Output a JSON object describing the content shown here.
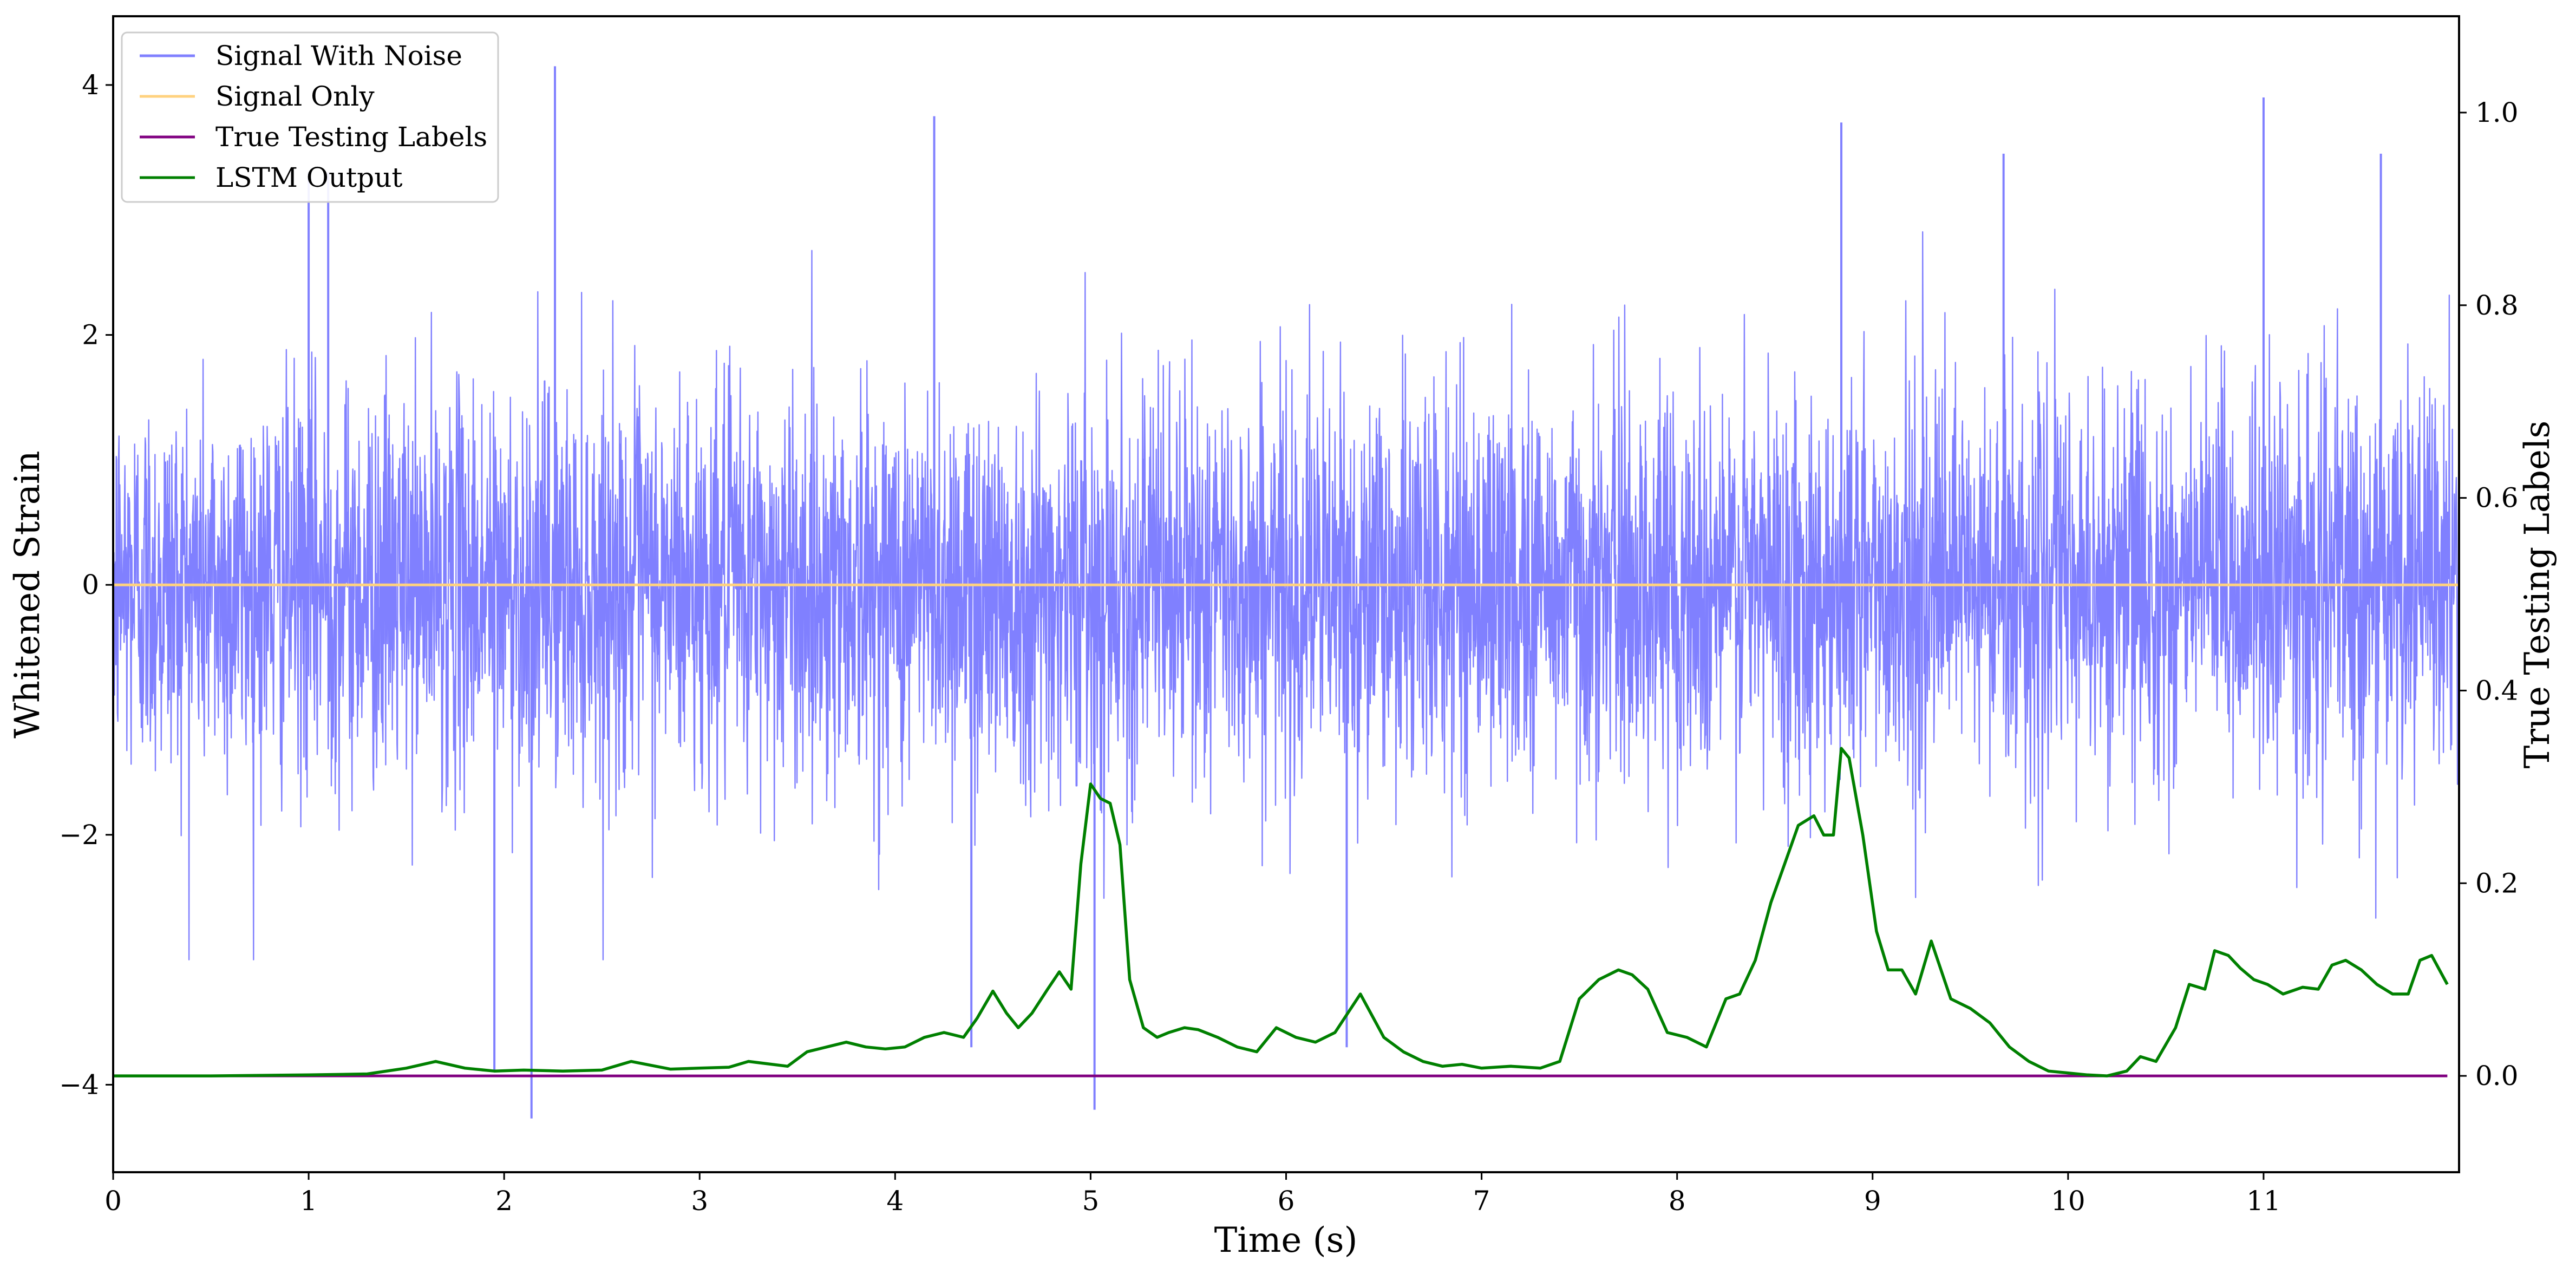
{
  "chart_data": {
    "type": "line",
    "xlabel": "Time (s)",
    "ylabel": "Whitened Strain",
    "y2label": "True Testing Labels",
    "xlim": [
      0,
      12
    ],
    "ylim": [
      -4.7,
      4.55
    ],
    "y2lim": [
      -0.1,
      1.1
    ],
    "xticks": [
      0,
      1,
      2,
      3,
      4,
      5,
      6,
      7,
      8,
      9,
      10,
      11
    ],
    "xtick_labels": [
      "0",
      "1",
      "2",
      "3",
      "4",
      "5",
      "6",
      "7",
      "8",
      "9",
      "10",
      "11"
    ],
    "yticks": [
      -4,
      -2,
      0,
      2,
      4
    ],
    "ytick_labels": [
      "−4",
      "−2",
      "0",
      "2",
      "4"
    ],
    "y2ticks": [
      0.0,
      0.2,
      0.4,
      0.6,
      0.8,
      1.0
    ],
    "y2tick_labels": [
      "0.0",
      "0.2",
      "0.4",
      "0.6",
      "0.8",
      "1.0"
    ],
    "grid": false,
    "legend_position": "top-left",
    "series": [
      {
        "name": "Signal With Noise",
        "axis": "left",
        "color": "#8080ff",
        "description_of_values": "dense noise, roughly uniform envelope about ±1.5 to ±2.5 with spikes reaching 4.1 and -4.3",
        "envelope": {
          "typical_min": -1.6,
          "typical_max": 1.6,
          "peak_max": 4.15,
          "peak_min": -4.27
        },
        "notable_spikes": [
          [
            1.0,
            3.3
          ],
          [
            1.1,
            3.3
          ],
          [
            2.26,
            4.15
          ],
          [
            2.14,
            -4.27
          ],
          [
            1.95,
            -3.9
          ],
          [
            4.2,
            3.75
          ],
          [
            4.39,
            -3.7
          ],
          [
            5.02,
            -4.2
          ],
          [
            6.31,
            -3.7
          ],
          [
            8.84,
            3.7
          ],
          [
            9.67,
            3.45
          ],
          [
            11.0,
            3.9
          ],
          [
            11.6,
            3.45
          ]
        ]
      },
      {
        "name": "Signal Only",
        "axis": "left",
        "color": "#ffd27f",
        "x": [
          0,
          12
        ],
        "values": [
          0,
          0
        ]
      },
      {
        "name": "True Testing Labels",
        "axis": "right",
        "color": "#800080",
        "x": [
          0,
          11.94
        ],
        "values": [
          0,
          0
        ]
      },
      {
        "name": "LSTM Output",
        "axis": "right",
        "color": "#008000",
        "x": [
          0,
          0.5,
          1.0,
          1.3,
          1.5,
          1.65,
          1.8,
          1.95,
          2.1,
          2.3,
          2.5,
          2.65,
          2.85,
          3.0,
          3.15,
          3.25,
          3.45,
          3.55,
          3.65,
          3.75,
          3.85,
          3.95,
          4.05,
          4.15,
          4.25,
          4.35,
          4.42,
          4.5,
          4.57,
          4.63,
          4.7,
          4.78,
          4.84,
          4.9,
          4.95,
          5.0,
          5.05,
          5.1,
          5.15,
          5.2,
          5.27,
          5.34,
          5.4,
          5.48,
          5.55,
          5.65,
          5.75,
          5.85,
          5.95,
          6.05,
          6.15,
          6.25,
          6.38,
          6.5,
          6.6,
          6.7,
          6.8,
          6.9,
          7.0,
          7.15,
          7.3,
          7.4,
          7.5,
          7.6,
          7.7,
          7.77,
          7.85,
          7.95,
          8.05,
          8.15,
          8.25,
          8.32,
          8.4,
          8.48,
          8.55,
          8.62,
          8.7,
          8.75,
          8.8,
          8.84,
          8.88,
          8.95,
          9.02,
          9.08,
          9.15,
          9.22,
          9.3,
          9.4,
          9.5,
          9.6,
          9.7,
          9.8,
          9.9,
          10.0,
          10.1,
          10.2,
          10.3,
          10.37,
          10.45,
          10.55,
          10.62,
          10.7,
          10.75,
          10.82,
          10.88,
          10.95,
          11.02,
          11.1,
          11.2,
          11.28,
          11.35,
          11.42,
          11.5,
          11.58,
          11.66,
          11.74,
          11.8,
          11.86,
          11.94
        ],
        "values": [
          0.0,
          0.0,
          0.001,
          0.002,
          0.008,
          0.015,
          0.008,
          0.005,
          0.006,
          0.005,
          0.006,
          0.015,
          0.007,
          0.008,
          0.009,
          0.015,
          0.01,
          0.025,
          0.03,
          0.035,
          0.03,
          0.028,
          0.03,
          0.04,
          0.045,
          0.04,
          0.06,
          0.088,
          0.065,
          0.05,
          0.065,
          0.09,
          0.108,
          0.09,
          0.22,
          0.303,
          0.288,
          0.283,
          0.24,
          0.1,
          0.05,
          0.04,
          0.045,
          0.05,
          0.048,
          0.04,
          0.03,
          0.025,
          0.05,
          0.04,
          0.035,
          0.045,
          0.085,
          0.04,
          0.025,
          0.015,
          0.01,
          0.012,
          0.008,
          0.01,
          0.008,
          0.015,
          0.08,
          0.1,
          0.11,
          0.105,
          0.09,
          0.045,
          0.04,
          0.03,
          0.08,
          0.085,
          0.12,
          0.18,
          0.22,
          0.26,
          0.27,
          0.25,
          0.25,
          0.34,
          0.33,
          0.25,
          0.15,
          0.11,
          0.11,
          0.085,
          0.14,
          0.08,
          0.07,
          0.055,
          0.03,
          0.015,
          0.005,
          0.003,
          0.001,
          0.0,
          0.005,
          0.02,
          0.015,
          0.05,
          0.095,
          0.09,
          0.13,
          0.125,
          0.112,
          0.1,
          0.095,
          0.085,
          0.092,
          0.09,
          0.115,
          0.12,
          0.11,
          0.095,
          0.085,
          0.085,
          0.12,
          0.125,
          0.095
        ]
      }
    ]
  }
}
